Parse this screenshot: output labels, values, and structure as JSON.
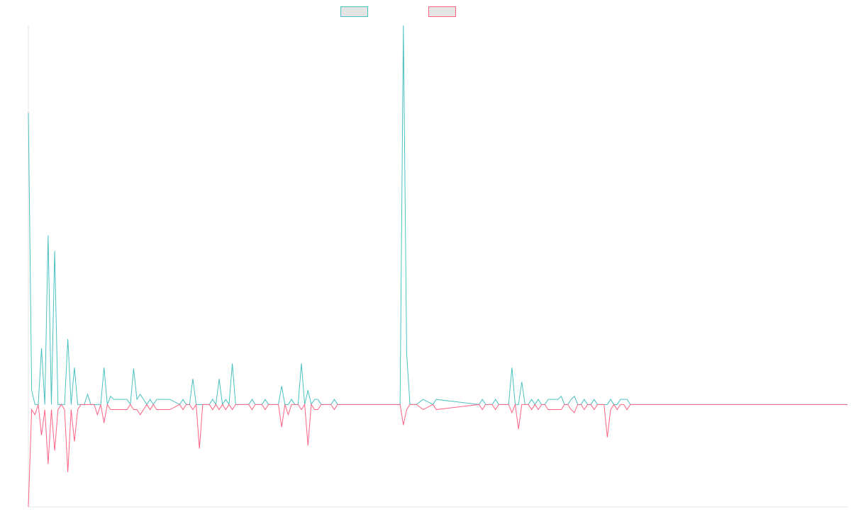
{
  "colors": {
    "series_a": "#4bc0c0",
    "series_b": "#ff6384",
    "axis": "#e6e6e6"
  },
  "legend": {
    "placement": "top-center",
    "items": [
      {
        "color": "#4bc0c0"
      },
      {
        "color": "#ff6384"
      }
    ]
  },
  "chart_data": {
    "type": "line",
    "title": "",
    "xlabel": "",
    "ylabel": "",
    "grid": false,
    "xlim": [
      0,
      249
    ],
    "ylim": [
      -100,
      370
    ],
    "series": [
      {
        "color": "#4bc0c0",
        "points": [
          [
            0,
            285
          ],
          [
            1,
            14
          ],
          [
            2,
            0
          ],
          [
            3,
            0
          ],
          [
            4,
            55
          ],
          [
            5,
            0
          ],
          [
            6,
            165
          ],
          [
            7,
            0
          ],
          [
            8,
            150
          ],
          [
            9,
            0
          ],
          [
            10,
            0
          ],
          [
            11,
            0
          ],
          [
            12,
            64
          ],
          [
            13,
            0
          ],
          [
            14,
            36
          ],
          [
            15,
            0
          ],
          [
            16,
            0
          ],
          [
            17,
            0
          ],
          [
            18,
            10
          ],
          [
            19,
            0
          ],
          [
            20,
            0
          ],
          [
            21,
            0
          ],
          [
            22,
            0
          ],
          [
            23,
            36
          ],
          [
            24,
            0
          ],
          [
            25,
            8
          ],
          [
            26,
            5
          ],
          [
            27,
            5
          ],
          [
            28,
            5
          ],
          [
            29,
            5
          ],
          [
            30,
            5
          ],
          [
            31,
            0
          ],
          [
            32,
            35
          ],
          [
            33,
            5
          ],
          [
            34,
            10
          ],
          [
            35,
            5
          ],
          [
            36,
            0
          ],
          [
            37,
            5
          ],
          [
            38,
            0
          ],
          [
            39,
            5
          ],
          [
            43,
            5
          ],
          [
            46,
            0
          ],
          [
            47,
            5
          ],
          [
            48,
            0
          ],
          [
            49,
            0
          ],
          [
            50,
            25
          ],
          [
            51,
            0
          ],
          [
            52,
            0
          ],
          [
            53,
            0
          ],
          [
            54,
            0
          ],
          [
            55,
            0
          ],
          [
            56,
            5
          ],
          [
            57,
            0
          ],
          [
            58,
            25
          ],
          [
            59,
            0
          ],
          [
            60,
            5
          ],
          [
            61,
            0
          ],
          [
            62,
            40
          ],
          [
            63,
            0
          ],
          [
            64,
            0
          ],
          [
            65,
            0
          ],
          [
            66,
            0
          ],
          [
            67,
            0
          ],
          [
            68,
            5
          ],
          [
            69,
            0
          ],
          [
            70,
            0
          ],
          [
            71,
            0
          ],
          [
            72,
            5
          ],
          [
            73,
            0
          ],
          [
            74,
            0
          ],
          [
            75,
            0
          ],
          [
            76,
            0
          ],
          [
            77,
            18
          ],
          [
            78,
            0
          ],
          [
            79,
            0
          ],
          [
            80,
            5
          ],
          [
            81,
            0
          ],
          [
            82,
            0
          ],
          [
            83,
            40
          ],
          [
            84,
            0
          ],
          [
            85,
            14
          ],
          [
            86,
            0
          ],
          [
            87,
            5
          ],
          [
            88,
            5
          ],
          [
            89,
            0
          ],
          [
            90,
            0
          ],
          [
            91,
            0
          ],
          [
            92,
            0
          ],
          [
            93,
            5
          ],
          [
            94,
            0
          ],
          [
            95,
            0
          ],
          [
            96,
            0
          ],
          [
            97,
            0
          ],
          [
            98,
            0
          ],
          [
            99,
            0
          ],
          [
            100,
            0
          ],
          [
            101,
            0
          ],
          [
            102,
            0
          ],
          [
            103,
            0
          ],
          [
            104,
            0
          ],
          [
            105,
            0
          ],
          [
            106,
            0
          ],
          [
            107,
            0
          ],
          [
            108,
            0
          ],
          [
            109,
            0
          ],
          [
            110,
            0
          ],
          [
            111,
            0
          ],
          [
            112,
            0
          ],
          [
            113,
            0
          ],
          [
            114,
            370
          ],
          [
            115,
            50
          ],
          [
            116,
            0
          ],
          [
            117,
            0
          ],
          [
            118,
            0
          ],
          [
            120,
            5
          ],
          [
            123,
            0
          ],
          [
            124,
            5
          ],
          [
            137,
            0
          ],
          [
            138,
            5
          ],
          [
            139,
            0
          ],
          [
            140,
            0
          ],
          [
            141,
            0
          ],
          [
            142,
            5
          ],
          [
            143,
            0
          ],
          [
            144,
            0
          ],
          [
            145,
            0
          ],
          [
            146,
            0
          ],
          [
            147,
            36
          ],
          [
            148,
            0
          ],
          [
            149,
            0
          ],
          [
            150,
            22
          ],
          [
            151,
            0
          ],
          [
            152,
            0
          ],
          [
            153,
            5
          ],
          [
            154,
            0
          ],
          [
            155,
            5
          ],
          [
            156,
            0
          ],
          [
            157,
            0
          ],
          [
            158,
            5
          ],
          [
            159,
            5
          ],
          [
            160,
            5
          ],
          [
            161,
            5
          ],
          [
            162,
            8
          ],
          [
            163,
            0
          ],
          [
            164,
            0
          ],
          [
            165,
            5
          ],
          [
            166,
            8
          ],
          [
            167,
            0
          ],
          [
            168,
            0
          ],
          [
            169,
            5
          ],
          [
            170,
            0
          ],
          [
            171,
            0
          ],
          [
            172,
            5
          ],
          [
            173,
            0
          ],
          [
            174,
            0
          ],
          [
            175,
            0
          ],
          [
            176,
            0
          ],
          [
            177,
            5
          ],
          [
            178,
            0
          ],
          [
            179,
            0
          ],
          [
            180,
            5
          ],
          [
            181,
            5
          ],
          [
            182,
            5
          ],
          [
            183,
            0
          ],
          [
            184,
            0
          ],
          [
            185,
            0
          ],
          [
            249,
            0
          ]
        ]
      },
      {
        "color": "#ff6384",
        "points": [
          [
            0,
            -100
          ],
          [
            1,
            -5
          ],
          [
            2,
            -10
          ],
          [
            3,
            0
          ],
          [
            4,
            -30
          ],
          [
            5,
            -5
          ],
          [
            6,
            -58
          ],
          [
            7,
            -5
          ],
          [
            8,
            -45
          ],
          [
            9,
            -5
          ],
          [
            10,
            0
          ],
          [
            11,
            -5
          ],
          [
            12,
            -66
          ],
          [
            13,
            -5
          ],
          [
            14,
            -36
          ],
          [
            15,
            -5
          ],
          [
            16,
            0
          ],
          [
            17,
            0
          ],
          [
            18,
            0
          ],
          [
            19,
            0
          ],
          [
            20,
            0
          ],
          [
            21,
            -10
          ],
          [
            22,
            0
          ],
          [
            23,
            -18
          ],
          [
            24,
            0
          ],
          [
            25,
            -5
          ],
          [
            26,
            -5
          ],
          [
            27,
            -5
          ],
          [
            28,
            -5
          ],
          [
            29,
            -5
          ],
          [
            30,
            -5
          ],
          [
            31,
            0
          ],
          [
            32,
            -5
          ],
          [
            33,
            -5
          ],
          [
            34,
            -10
          ],
          [
            35,
            -5
          ],
          [
            36,
            0
          ],
          [
            37,
            -5
          ],
          [
            38,
            0
          ],
          [
            39,
            -5
          ],
          [
            43,
            -5
          ],
          [
            46,
            0
          ],
          [
            47,
            -5
          ],
          [
            48,
            0
          ],
          [
            49,
            0
          ],
          [
            50,
            -5
          ],
          [
            51,
            0
          ],
          [
            52,
            -43
          ],
          [
            53,
            0
          ],
          [
            54,
            0
          ],
          [
            55,
            0
          ],
          [
            56,
            -5
          ],
          [
            57,
            0
          ],
          [
            58,
            -5
          ],
          [
            59,
            0
          ],
          [
            60,
            -5
          ],
          [
            61,
            0
          ],
          [
            62,
            -5
          ],
          [
            63,
            0
          ],
          [
            64,
            0
          ],
          [
            65,
            0
          ],
          [
            66,
            0
          ],
          [
            67,
            0
          ],
          [
            68,
            -5
          ],
          [
            69,
            0
          ],
          [
            70,
            0
          ],
          [
            71,
            0
          ],
          [
            72,
            -5
          ],
          [
            73,
            0
          ],
          [
            74,
            0
          ],
          [
            75,
            0
          ],
          [
            76,
            0
          ],
          [
            77,
            -22
          ],
          [
            78,
            0
          ],
          [
            79,
            -10
          ],
          [
            80,
            0
          ],
          [
            81,
            0
          ],
          [
            82,
            0
          ],
          [
            83,
            -5
          ],
          [
            84,
            0
          ],
          [
            85,
            -40
          ],
          [
            86,
            0
          ],
          [
            87,
            -5
          ],
          [
            88,
            -5
          ],
          [
            89,
            0
          ],
          [
            90,
            0
          ],
          [
            91,
            0
          ],
          [
            92,
            0
          ],
          [
            93,
            -5
          ],
          [
            94,
            0
          ],
          [
            95,
            0
          ],
          [
            96,
            0
          ],
          [
            97,
            0
          ],
          [
            98,
            0
          ],
          [
            99,
            0
          ],
          [
            100,
            0
          ],
          [
            101,
            0
          ],
          [
            102,
            0
          ],
          [
            103,
            0
          ],
          [
            104,
            0
          ],
          [
            105,
            0
          ],
          [
            106,
            0
          ],
          [
            107,
            0
          ],
          [
            108,
            0
          ],
          [
            109,
            0
          ],
          [
            110,
            0
          ],
          [
            111,
            0
          ],
          [
            112,
            0
          ],
          [
            113,
            0
          ],
          [
            114,
            -20
          ],
          [
            115,
            -5
          ],
          [
            116,
            0
          ],
          [
            117,
            0
          ],
          [
            118,
            0
          ],
          [
            120,
            -5
          ],
          [
            123,
            0
          ],
          [
            124,
            -5
          ],
          [
            137,
            0
          ],
          [
            138,
            -5
          ],
          [
            139,
            0
          ],
          [
            140,
            0
          ],
          [
            141,
            0
          ],
          [
            142,
            -5
          ],
          [
            143,
            0
          ],
          [
            144,
            0
          ],
          [
            145,
            0
          ],
          [
            146,
            0
          ],
          [
            147,
            -8
          ],
          [
            148,
            0
          ],
          [
            149,
            -24
          ],
          [
            150,
            0
          ],
          [
            151,
            0
          ],
          [
            152,
            0
          ],
          [
            153,
            -5
          ],
          [
            154,
            0
          ],
          [
            155,
            -5
          ],
          [
            156,
            0
          ],
          [
            157,
            0
          ],
          [
            158,
            -5
          ],
          [
            159,
            -5
          ],
          [
            160,
            -5
          ],
          [
            161,
            -5
          ],
          [
            162,
            -5
          ],
          [
            163,
            0
          ],
          [
            164,
            0
          ],
          [
            165,
            -5
          ],
          [
            166,
            -8
          ],
          [
            167,
            0
          ],
          [
            168,
            0
          ],
          [
            169,
            -5
          ],
          [
            170,
            0
          ],
          [
            171,
            0
          ],
          [
            172,
            -5
          ],
          [
            173,
            0
          ],
          [
            174,
            0
          ],
          [
            175,
            0
          ],
          [
            176,
            -32
          ],
          [
            177,
            -5
          ],
          [
            178,
            0
          ],
          [
            179,
            -5
          ],
          [
            180,
            0
          ],
          [
            181,
            0
          ],
          [
            182,
            -5
          ],
          [
            183,
            0
          ],
          [
            184,
            0
          ],
          [
            185,
            0
          ],
          [
            249,
            0
          ]
        ]
      }
    ]
  }
}
